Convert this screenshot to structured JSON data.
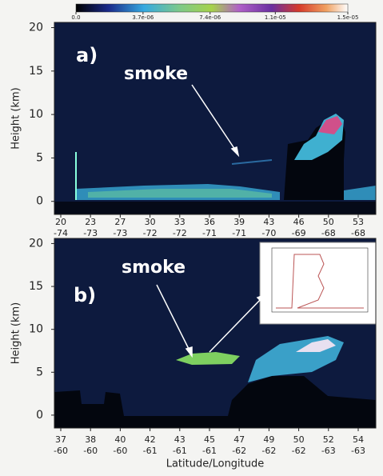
{
  "colorbar": {
    "lim": [
      0,
      1.5e-05
    ],
    "ticks": [
      {
        "value": 0,
        "label": "0.0"
      },
      {
        "value": 3.7e-06,
        "label": "3.7e-06"
      },
      {
        "value": 7.4e-06,
        "label": "7.4e-06"
      },
      {
        "value": 1.1e-05,
        "label": "1.1e-05"
      },
      {
        "value": 1.5e-05,
        "label": "1.5e-05"
      }
    ]
  },
  "chart_data": [
    {
      "type": "curtain",
      "label": "a)",
      "annotation": "smoke",
      "ylabel": "Height (km)",
      "ylim": [
        -1.5,
        20.6
      ],
      "yticks": [
        0,
        5,
        10,
        15,
        20
      ],
      "lat": [
        20,
        23,
        27,
        30,
        33,
        36,
        39,
        43,
        46,
        50,
        53
      ],
      "lon": [
        -74,
        -73,
        -73,
        -72,
        -72,
        -71,
        -71,
        -70,
        -69,
        -68,
        -68
      ]
    },
    {
      "type": "curtain",
      "label": "b)",
      "annotation": "smoke",
      "ylabel": "Height (km)",
      "xlabel": "Latitude/Longitude",
      "ylim": [
        -1.5,
        20.6
      ],
      "yticks": [
        0,
        5,
        10,
        15,
        20
      ],
      "lat": [
        37,
        38,
        40,
        42,
        43,
        45,
        47,
        49,
        50,
        52,
        54
      ],
      "lon": [
        -60,
        -60,
        -60,
        -61,
        -61,
        -61,
        -62,
        -62,
        -62,
        -63,
        -63
      ]
    }
  ]
}
